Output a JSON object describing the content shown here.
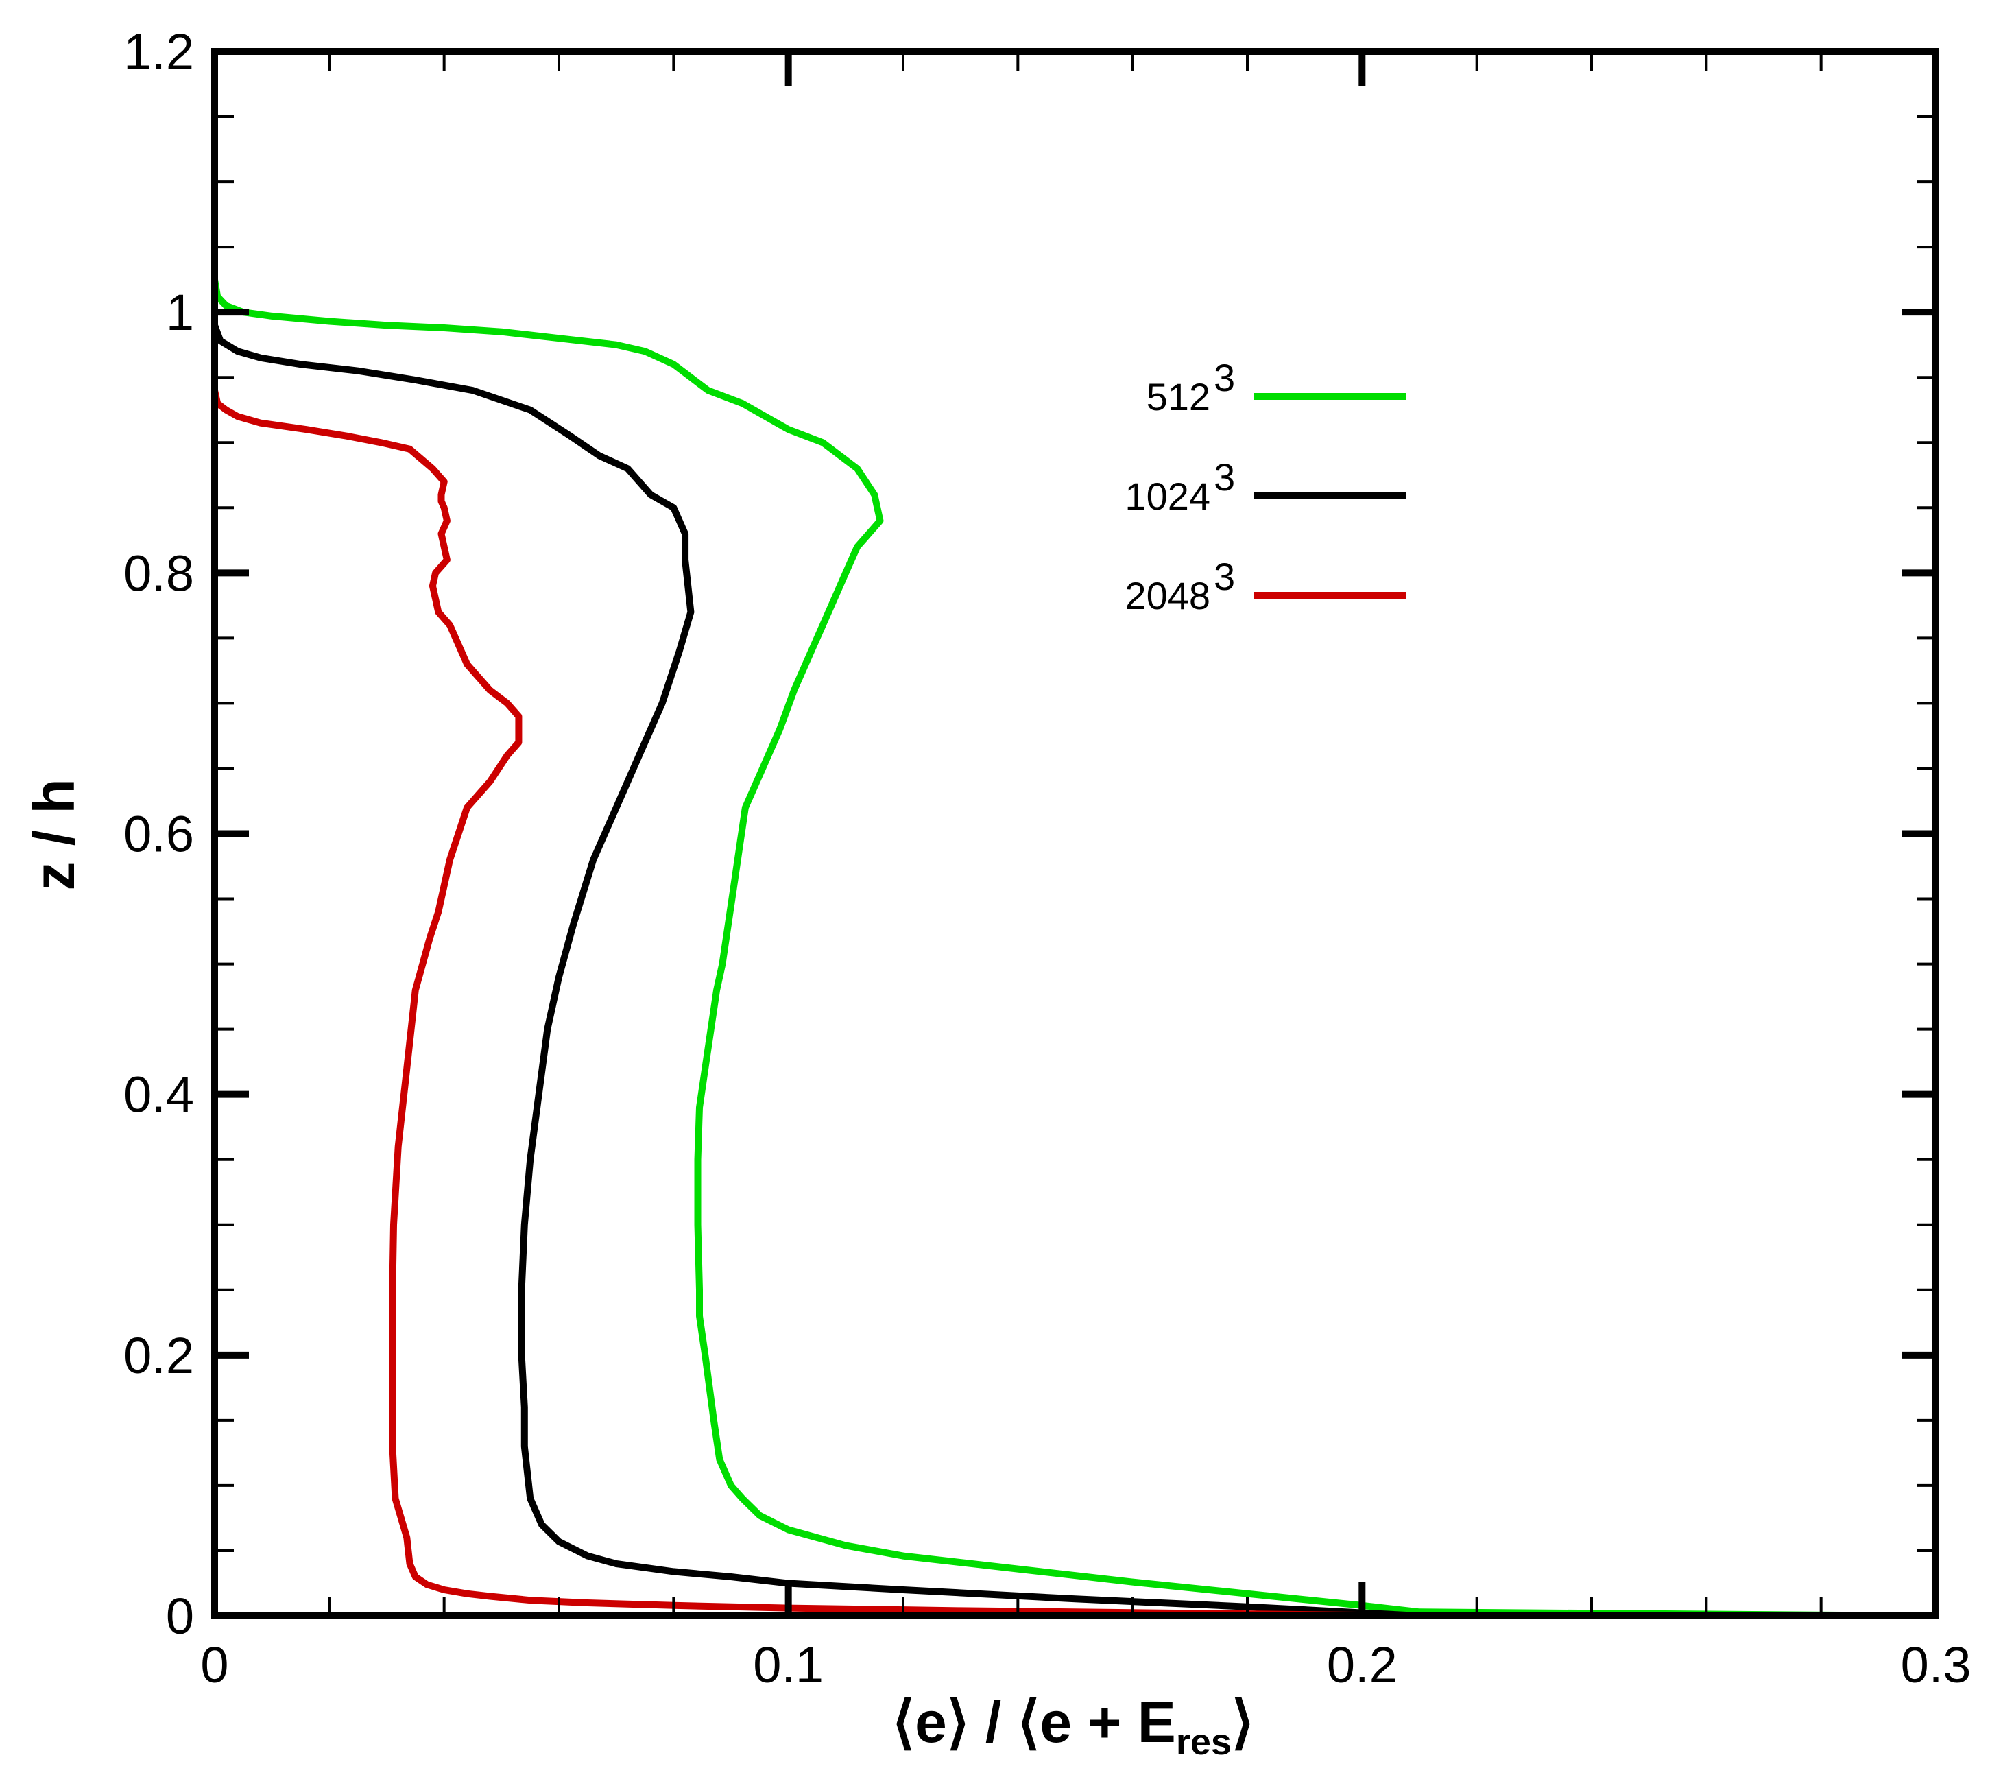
{
  "chart_data": {
    "type": "line",
    "title": "",
    "xlabel": {
      "open": "⟨e⟩ / ⟨e + E",
      "sub": "res",
      "close": "⟩"
    },
    "ylabel": "z / h",
    "xlim": [
      0,
      0.3
    ],
    "ylim": [
      0,
      1.2
    ],
    "xticks": [
      0,
      0.1,
      0.2,
      0.3
    ],
    "xtick_labels": [
      "0",
      "0.1",
      "0.2",
      "0.3"
    ],
    "yticks": [
      0,
      0.2,
      0.4,
      0.6,
      0.8,
      1.0,
      1.2
    ],
    "ytick_labels": [
      "0",
      "0.2",
      "0.4",
      "0.6",
      "0.8",
      "1",
      "1.2"
    ],
    "grid": false,
    "legend_position": "upper-right",
    "series": [
      {
        "name": "512",
        "sup": "3",
        "color": "#00dd00",
        "x": [
          0.3,
          0.21,
          0.2,
          0.18,
          0.16,
          0.14,
          0.12,
          0.11,
          0.1,
          0.095,
          0.092,
          0.09,
          0.088,
          0.087,
          0.0855,
          0.0845,
          0.0845,
          0.0842,
          0.0842,
          0.0845,
          0.0855,
          0.0865,
          0.0875,
          0.0885,
          0.0895,
          0.0905,
          0.0915,
          0.0925,
          0.0955,
          0.0985,
          0.101,
          0.104,
          0.106,
          0.11,
          0.112,
          0.116,
          0.115,
          0.112,
          0.106,
          0.1,
          0.092,
          0.086,
          0.083,
          0.08,
          0.075,
          0.07,
          0.06,
          0.05,
          0.04,
          0.03,
          0.02,
          0.01,
          0.005,
          0.002,
          0.0005,
          0.0
        ],
        "y": [
          0.0,
          0.003,
          0.008,
          0.017,
          0.026,
          0.036,
          0.046,
          0.054,
          0.066,
          0.077,
          0.09,
          0.1,
          0.12,
          0.15,
          0.2,
          0.23,
          0.25,
          0.3,
          0.35,
          0.39,
          0.42,
          0.45,
          0.48,
          0.5,
          0.53,
          0.56,
          0.59,
          0.62,
          0.65,
          0.68,
          0.71,
          0.74,
          0.76,
          0.8,
          0.82,
          0.84,
          0.86,
          0.88,
          0.9,
          0.91,
          0.93,
          0.94,
          0.95,
          0.96,
          0.97,
          0.975,
          0.98,
          0.985,
          0.988,
          0.99,
          0.993,
          0.997,
          1.0,
          1.005,
          1.012,
          1.025
        ]
      },
      {
        "name": "1024",
        "sup": "3",
        "color": "#000000",
        "x": [
          0.21,
          0.18,
          0.15,
          0.12,
          0.1,
          0.09,
          0.08,
          0.07,
          0.065,
          0.06,
          0.057,
          0.055,
          0.054,
          0.054,
          0.0535,
          0.0535,
          0.054,
          0.055,
          0.0565,
          0.058,
          0.06,
          0.0625,
          0.066,
          0.07,
          0.074,
          0.078,
          0.081,
          0.083,
          0.082,
          0.082,
          0.08,
          0.076,
          0.072,
          0.067,
          0.062,
          0.055,
          0.045,
          0.035,
          0.025,
          0.015,
          0.008,
          0.004,
          0.001,
          0.0
        ],
        "y": [
          0.0,
          0.007,
          0.013,
          0.02,
          0.025,
          0.03,
          0.034,
          0.04,
          0.046,
          0.057,
          0.07,
          0.09,
          0.13,
          0.16,
          0.2,
          0.25,
          0.3,
          0.35,
          0.4,
          0.45,
          0.49,
          0.53,
          0.58,
          0.62,
          0.66,
          0.7,
          0.74,
          0.77,
          0.81,
          0.83,
          0.85,
          0.86,
          0.88,
          0.89,
          0.905,
          0.925,
          0.94,
          0.948,
          0.955,
          0.96,
          0.965,
          0.97,
          0.978,
          0.99
        ]
      },
      {
        "name": "2048",
        "sup": "3",
        "color": "#cc0000",
        "x": [
          0.21,
          0.17,
          0.13,
          0.1,
          0.08,
          0.065,
          0.055,
          0.048,
          0.044,
          0.04,
          0.037,
          0.035,
          0.034,
          0.0335,
          0.0315,
          0.031,
          0.031,
          0.031,
          0.0312,
          0.032,
          0.0335,
          0.035,
          0.0375,
          0.039,
          0.041,
          0.044,
          0.048,
          0.051,
          0.053,
          0.053,
          0.051,
          0.048,
          0.044,
          0.041,
          0.039,
          0.038,
          0.0385,
          0.0405,
          0.0395,
          0.0405,
          0.04,
          0.0395,
          0.0395,
          0.04,
          0.038,
          0.034,
          0.029,
          0.023,
          0.016,
          0.008,
          0.004,
          0.002,
          0.0005,
          0.0
        ],
        "y": [
          0.0,
          0.002,
          0.004,
          0.006,
          0.008,
          0.01,
          0.012,
          0.015,
          0.017,
          0.02,
          0.024,
          0.03,
          0.04,
          0.06,
          0.09,
          0.13,
          0.2,
          0.25,
          0.3,
          0.36,
          0.42,
          0.48,
          0.52,
          0.54,
          0.58,
          0.62,
          0.64,
          0.66,
          0.67,
          0.69,
          0.7,
          0.71,
          0.73,
          0.76,
          0.77,
          0.79,
          0.8,
          0.81,
          0.83,
          0.84,
          0.85,
          0.855,
          0.86,
          0.87,
          0.88,
          0.895,
          0.9,
          0.905,
          0.91,
          0.915,
          0.92,
          0.925,
          0.93,
          0.94
        ]
      }
    ]
  }
}
